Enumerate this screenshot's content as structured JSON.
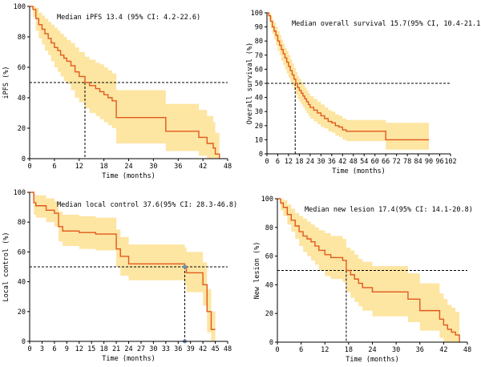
{
  "chart_data": [
    {
      "type": "line",
      "id": "ipfs",
      "annotation": "Median iPFS 13.4 (95% CI: 4.2-22.6)",
      "xlabel": "Time (months)",
      "ylabel": "iPFS (%)",
      "xlim": [
        0,
        48
      ],
      "ylim": [
        0,
        100
      ],
      "xticks": [
        0,
        6,
        12,
        18,
        24,
        30,
        36,
        42,
        48
      ],
      "yticks": [
        0,
        20,
        40,
        60,
        80,
        100
      ],
      "median_x": 13.4,
      "reference_y": 50,
      "line_color": "#e05a1c",
      "band_color": "#fde5a2",
      "curve": {
        "x": [
          0,
          0.8,
          1.5,
          2.2,
          3,
          3.7,
          4.5,
          5.2,
          6,
          6.8,
          7.5,
          8.3,
          9,
          10,
          11,
          12,
          13.4,
          14.5,
          16,
          17,
          18,
          19,
          20,
          21,
          24,
          30,
          33,
          36,
          38,
          41,
          43,
          44.5,
          45,
          46
        ],
        "y": [
          100,
          98,
          92,
          88,
          85,
          82,
          79,
          76,
          73,
          71,
          68,
          66,
          64,
          61,
          57,
          54,
          50,
          48,
          46,
          44,
          42,
          40,
          38,
          27,
          27,
          27,
          18,
          18,
          18,
          14,
          10,
          7,
          3,
          0
        ]
      },
      "ci_upper": {
        "x": [
          0,
          0.8,
          1.5,
          2.2,
          3,
          3.7,
          4.5,
          5.2,
          6,
          6.8,
          7.5,
          8.3,
          9,
          10,
          11,
          12,
          13.4,
          14.5,
          16,
          17,
          18,
          19,
          20,
          21,
          24,
          30,
          33,
          36,
          38,
          41,
          43,
          44.5,
          45,
          46
        ],
        "y": [
          100,
          100,
          99,
          96,
          94,
          92,
          90,
          88,
          86,
          84,
          82,
          80,
          78,
          76,
          73,
          70,
          67,
          65,
          63,
          62,
          60,
          58,
          56,
          45,
          45,
          45,
          36,
          36,
          36,
          32,
          28,
          24,
          17,
          0
        ]
      },
      "ci_lower": {
        "x": [
          0,
          0.8,
          1.5,
          2.2,
          3,
          3.7,
          4.5,
          5.2,
          6,
          6.8,
          7.5,
          8.3,
          9,
          10,
          11,
          12,
          13.4,
          14.5,
          16,
          17,
          18,
          19,
          20,
          21,
          24,
          30,
          33,
          36,
          38,
          41,
          43,
          44.5,
          45,
          46
        ],
        "y": [
          100,
          93,
          84,
          79,
          75,
          71,
          68,
          64,
          60,
          57,
          54,
          51,
          49,
          45,
          40,
          37,
          33,
          30,
          28,
          26,
          24,
          22,
          20,
          10,
          10,
          10,
          5,
          5,
          5,
          2,
          0,
          0,
          0,
          0
        ]
      }
    },
    {
      "type": "line",
      "id": "os",
      "annotation": "Median overall survival 15.7(95% CI, 10.4-21.1)",
      "xlabel": "Time (months)",
      "ylabel": "Overall survival (%)",
      "xlim": [
        0,
        102
      ],
      "ylim": [
        0,
        100
      ],
      "xticks": [
        0,
        6,
        12,
        18,
        24,
        30,
        36,
        42,
        48,
        54,
        60,
        66,
        72,
        78,
        84,
        90,
        96,
        102
      ],
      "yticks": [
        0,
        10,
        20,
        30,
        40,
        50,
        60,
        70,
        80,
        90,
        100
      ],
      "median_x": 15.7,
      "reference_y": 50,
      "line_color": "#e05a1c",
      "band_color": "#fde5a2",
      "curve": {
        "x": [
          0,
          1,
          2,
          3,
          4,
          5,
          6,
          7,
          8,
          9,
          10,
          11,
          12,
          13,
          14,
          15,
          16,
          17,
          18,
          19,
          20,
          21,
          22,
          23,
          24,
          26,
          28,
          30,
          32,
          34,
          36,
          38,
          40,
          42,
          44,
          48,
          52,
          56,
          60,
          66,
          72,
          78,
          84,
          90
        ],
        "y": [
          100,
          98,
          94,
          90,
          87,
          84,
          80,
          77,
          74,
          71,
          68,
          65,
          62,
          59,
          56,
          53,
          50,
          47,
          45,
          43,
          41,
          39,
          37,
          35,
          33,
          31,
          29,
          27,
          25,
          23,
          22,
          20,
          19,
          17,
          16,
          16,
          16,
          16,
          16,
          10,
          10,
          10,
          10,
          10
        ]
      },
      "ci_upper": {
        "x": [
          0,
          1,
          2,
          3,
          4,
          5,
          6,
          7,
          8,
          9,
          10,
          11,
          12,
          13,
          14,
          15,
          16,
          17,
          18,
          19,
          20,
          21,
          22,
          23,
          24,
          26,
          28,
          30,
          32,
          34,
          36,
          38,
          40,
          42,
          44,
          48,
          52,
          56,
          60,
          66,
          72,
          78,
          84,
          90
        ],
        "y": [
          100,
          100,
          98,
          95,
          93,
          90,
          87,
          84,
          81,
          78,
          75,
          73,
          70,
          67,
          64,
          61,
          58,
          55,
          53,
          51,
          49,
          47,
          45,
          43,
          41,
          39,
          37,
          35,
          33,
          31,
          30,
          28,
          27,
          25,
          24,
          24,
          24,
          24,
          24,
          22,
          22,
          22,
          22,
          22
        ]
      },
      "ci_lower": {
        "x": [
          0,
          1,
          2,
          3,
          4,
          5,
          6,
          7,
          8,
          9,
          10,
          11,
          12,
          13,
          14,
          15,
          16,
          17,
          18,
          19,
          20,
          21,
          22,
          23,
          24,
          26,
          28,
          30,
          32,
          34,
          36,
          38,
          40,
          42,
          44,
          48,
          52,
          56,
          60,
          66,
          72,
          78,
          84,
          90
        ],
        "y": [
          100,
          95,
          89,
          85,
          81,
          77,
          73,
          70,
          66,
          63,
          60,
          57,
          54,
          51,
          48,
          45,
          42,
          39,
          37,
          35,
          33,
          31,
          29,
          27,
          25,
          23,
          21,
          19,
          18,
          16,
          15,
          13,
          12,
          10,
          9,
          9,
          9,
          9,
          9,
          3,
          3,
          3,
          3,
          3
        ]
      }
    },
    {
      "type": "line",
      "id": "local-control",
      "annotation": "Median local control 37.6(95% CI: 28.3-46.8)",
      "xlabel": "Time (months)",
      "ylabel": "Local control (%)",
      "xlim": [
        0,
        48
      ],
      "ylim": [
        0,
        100
      ],
      "xticks": [
        0,
        3,
        6,
        9,
        12,
        15,
        18,
        21,
        24,
        27,
        30,
        33,
        36,
        39,
        42,
        45,
        48
      ],
      "yticks": [
        0,
        20,
        40,
        60,
        80,
        100
      ],
      "median_x": 37.6,
      "reference_y": 50,
      "line_color": "#e05a1c",
      "band_color": "#fde5a2",
      "marker_color": "#6f8fb8",
      "curve": {
        "x": [
          0,
          1,
          1.5,
          3,
          4,
          6,
          7,
          8,
          10,
          12,
          14,
          16,
          20,
          21,
          22,
          24,
          27,
          30,
          33,
          36,
          37.6,
          38,
          40,
          42,
          43,
          44,
          45
        ],
        "y": [
          100,
          93,
          91,
          91,
          88,
          86,
          77,
          74,
          74,
          73,
          73,
          72,
          72,
          62,
          57,
          52,
          52,
          52,
          52,
          52,
          50,
          46,
          46,
          38,
          20,
          8,
          8
        ]
      },
      "ci_upper": {
        "x": [
          0,
          1,
          1.5,
          3,
          4,
          6,
          7,
          8,
          10,
          12,
          14,
          16,
          20,
          21,
          22,
          24,
          27,
          30,
          33,
          36,
          37.6,
          38,
          40,
          42,
          43,
          44,
          45
        ],
        "y": [
          100,
          99,
          98,
          98,
          96,
          94,
          87,
          85,
          85,
          84,
          84,
          83,
          83,
          75,
          70,
          65,
          65,
          65,
          65,
          65,
          63,
          60,
          60,
          53,
          35,
          20,
          20
        ]
      },
      "ci_lower": {
        "x": [
          0,
          1,
          1.5,
          3,
          4,
          6,
          7,
          8,
          10,
          12,
          14,
          16,
          20,
          21,
          22,
          24,
          27,
          30,
          33,
          36,
          37.6,
          38,
          40,
          42,
          43,
          44,
          45
        ],
        "y": [
          100,
          85,
          83,
          83,
          80,
          77,
          67,
          64,
          64,
          62,
          62,
          61,
          61,
          50,
          44,
          41,
          41,
          41,
          41,
          41,
          38,
          33,
          33,
          24,
          6,
          0,
          0
        ]
      }
    },
    {
      "type": "line",
      "id": "new-lesion",
      "annotation": "Median new lesion 17.4(95% CI: 14.1-20.8)",
      "xlabel": "Time (months)",
      "ylabel": "New lesion (%)",
      "xlim": [
        0,
        48
      ],
      "ylim": [
        0,
        100
      ],
      "xticks": [
        0,
        6,
        12,
        18,
        24,
        30,
        36,
        42,
        48
      ],
      "yticks": [
        0,
        20,
        40,
        60,
        80,
        100
      ],
      "median_x": 17.4,
      "reference_y": 50,
      "line_color": "#e05a1c",
      "band_color": "#fde5a2",
      "curve": {
        "x": [
          0,
          0.8,
          1.5,
          2.5,
          3.5,
          4.5,
          5.5,
          6.5,
          7.5,
          8.5,
          9.5,
          10.5,
          12,
          13.5,
          15,
          16.5,
          17.4,
          18.5,
          19.5,
          20.5,
          21.5,
          24,
          27,
          30,
          33,
          36,
          39,
          41,
          42,
          43,
          44,
          45,
          46
        ],
        "y": [
          100,
          97,
          94,
          89,
          85,
          81,
          77,
          74,
          72,
          70,
          67,
          64,
          61,
          59,
          59,
          57,
          50,
          47,
          44,
          41,
          38,
          35,
          35,
          35,
          30,
          22,
          22,
          16,
          12,
          9,
          7,
          5,
          0
        ]
      },
      "ci_upper": {
        "x": [
          0,
          0.8,
          1.5,
          2.5,
          3.5,
          4.5,
          5.5,
          6.5,
          7.5,
          8.5,
          9.5,
          10.5,
          12,
          13.5,
          15,
          16.5,
          17.4,
          18.5,
          19.5,
          20.5,
          21.5,
          24,
          27,
          30,
          33,
          36,
          39,
          41,
          42,
          43,
          44,
          45,
          46
        ],
        "y": [
          100,
          100,
          99,
          96,
          93,
          90,
          88,
          86,
          84,
          82,
          80,
          78,
          76,
          74,
          74,
          72,
          66,
          64,
          61,
          58,
          56,
          53,
          53,
          53,
          48,
          41,
          41,
          34,
          30,
          26,
          24,
          21,
          10
        ]
      },
      "ci_lower": {
        "x": [
          0,
          0.8,
          1.5,
          2.5,
          3.5,
          4.5,
          5.5,
          6.5,
          7.5,
          8.5,
          9.5,
          10.5,
          12,
          13.5,
          15,
          16.5,
          17.4,
          18.5,
          19.5,
          20.5,
          21.5,
          24,
          27,
          30,
          33,
          36,
          39,
          41,
          42,
          43,
          44,
          45,
          46
        ],
        "y": [
          100,
          92,
          88,
          82,
          77,
          72,
          67,
          63,
          60,
          57,
          54,
          50,
          46,
          44,
          44,
          42,
          35,
          31,
          28,
          25,
          22,
          18,
          18,
          18,
          14,
          8,
          8,
          3,
          0,
          0,
          0,
          0,
          0
        ]
      }
    }
  ]
}
